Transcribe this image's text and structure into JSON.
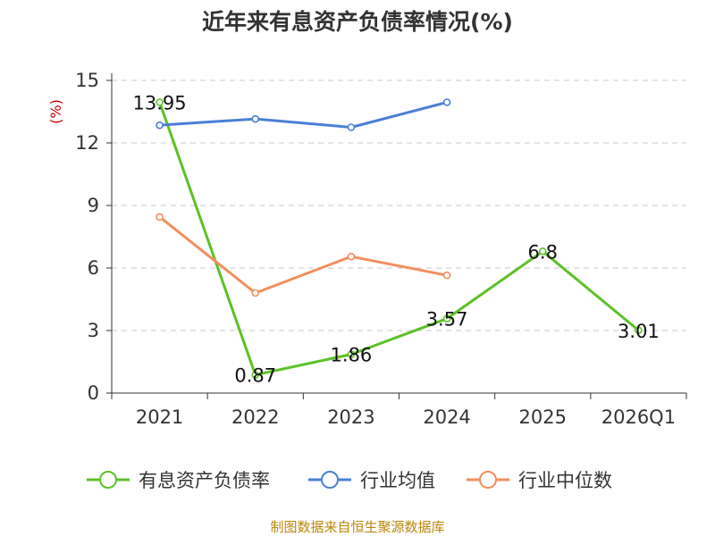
{
  "chart_data": {
    "type": "line",
    "title": "近年来有息资产负债率情况(%)",
    "ylabel": "(%)",
    "xlabel": "",
    "categories": [
      "2021",
      "2022",
      "2023",
      "2024",
      "2025",
      "2026Q1"
    ],
    "yticks": [
      "0",
      "3",
      "6",
      "9",
      "12",
      "15"
    ],
    "ylim": [
      0,
      15
    ],
    "grid": true,
    "legend_position": "bottom",
    "series": [
      {
        "name": "有息资产负债率",
        "color": "#5cc126",
        "values": [
          13.95,
          0.87,
          1.86,
          3.57,
          6.8,
          3.01
        ],
        "labels": [
          "13.95",
          "0.87",
          "1.86",
          "3.57",
          "6.8",
          "3.01"
        ]
      },
      {
        "name": "行业均值",
        "color": "#4b7fd6",
        "values": [
          12.85,
          13.15,
          12.75,
          13.95,
          null,
          null
        ],
        "labels": []
      },
      {
        "name": "行业中位数",
        "color": "#f28e5c",
        "values": [
          8.45,
          4.8,
          6.55,
          5.65,
          null,
          null
        ],
        "labels": []
      }
    ]
  },
  "source_note": "制图数据来自恒生聚源数据库"
}
